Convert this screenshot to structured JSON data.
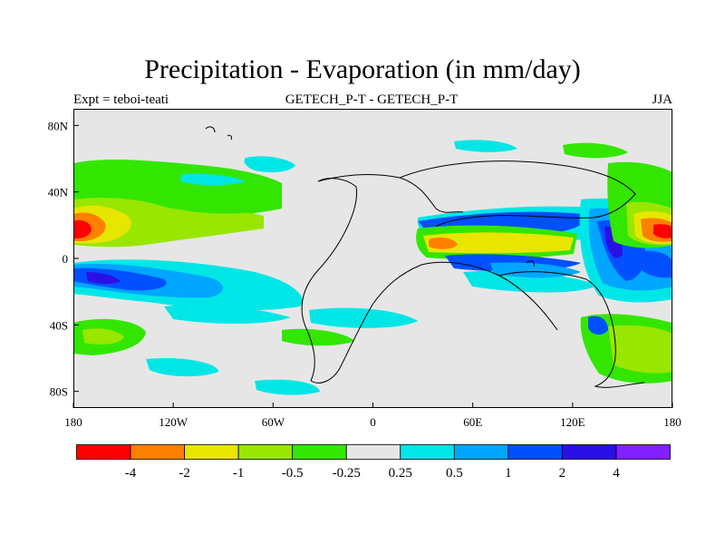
{
  "title": "Precipitation - Evaporation (in mm/day)",
  "subtitle_left": "Expt = teboi-teati",
  "subtitle_center": "GETECH_P-T - GETECH_P-T",
  "subtitle_right": "JJA",
  "map": {
    "lon_range": [
      -180,
      180
    ],
    "lat_range": [
      -90,
      90
    ],
    "x_ticks": [
      {
        "value": -180,
        "label": "180"
      },
      {
        "value": -120,
        "label": "120W"
      },
      {
        "value": -60,
        "label": "60W"
      },
      {
        "value": 0,
        "label": "0"
      },
      {
        "value": 60,
        "label": "60E"
      },
      {
        "value": 120,
        "label": "120E"
      },
      {
        "value": 180,
        "label": "180"
      }
    ],
    "y_ticks": [
      {
        "value": 80,
        "label": "80N"
      },
      {
        "value": 40,
        "label": "40N"
      },
      {
        "value": 0,
        "label": "0"
      },
      {
        "value": -40,
        "label": "40S"
      },
      {
        "value": -80,
        "label": "80S"
      }
    ],
    "background_color": "#e6e6e6"
  },
  "colorbar": {
    "colors": [
      "#ff0000",
      "#ff8000",
      "#e6e600",
      "#99e600",
      "#33e600",
      "#e6e6e6",
      "#00e6e6",
      "#00a6ff",
      "#0050ff",
      "#2a10e6",
      "#8020ff"
    ],
    "labels": [
      "-4",
      "-2",
      "-1",
      "-0.5",
      "-0.25",
      "0.25",
      "0.5",
      "1",
      "2",
      "4"
    ]
  }
}
